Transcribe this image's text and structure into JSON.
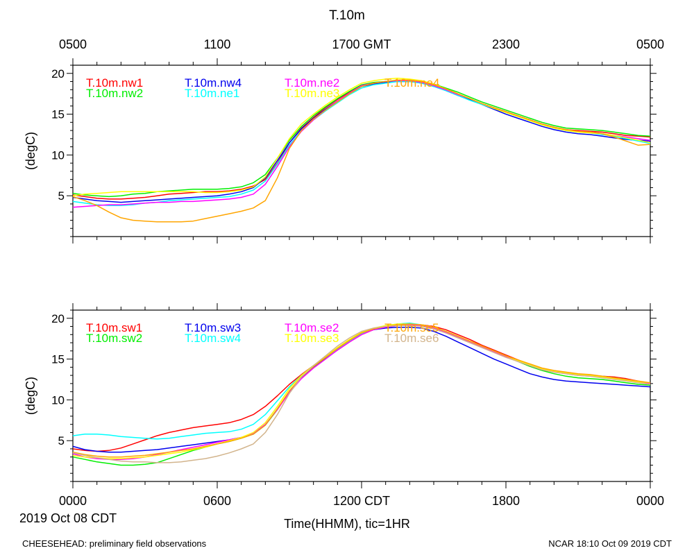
{
  "page": {
    "title": "T.10m",
    "date_label": "2019 Oct 08 CDT",
    "xaxis_title": "Time(HHMM), tic=1HR",
    "footer_left": "CHEESEHEAD: preliminary field observations",
    "footer_right": "NCAR 18:10 Oct 09 2019 CDT"
  },
  "chart_data": [
    {
      "type": "line",
      "panel": "top",
      "ylabel": "(degC)",
      "ylim": [
        0,
        21
      ],
      "yticks": [
        5,
        10,
        15,
        20
      ],
      "xlim": [
        0,
        24
      ],
      "x_unit": "hours from 0000 CDT",
      "top_tick_labels": [
        "0500",
        "1100",
        "1700 GMT",
        "2300",
        "0500"
      ],
      "top_tick_hours": [
        0,
        6,
        12,
        18,
        24
      ],
      "x": [
        0,
        0.5,
        1,
        1.5,
        2,
        2.5,
        3,
        3.5,
        4,
        4.5,
        5,
        5.5,
        6,
        6.5,
        7,
        7.5,
        8,
        8.5,
        9,
        9.5,
        10,
        10.5,
        11,
        11.5,
        12,
        12.5,
        13,
        13.5,
        14,
        14.5,
        15,
        15.5,
        16,
        16.5,
        17,
        17.5,
        18,
        18.5,
        19,
        19.5,
        20,
        20.5,
        21,
        21.5,
        22,
        22.5,
        23,
        23.5,
        24
      ],
      "series": [
        {
          "name": "T.10m.nw1",
          "color": "#ff0000",
          "values": [
            5.1,
            4.9,
            4.7,
            4.6,
            4.6,
            4.7,
            4.8,
            5.0,
            5.2,
            5.3,
            5.4,
            5.5,
            5.5,
            5.6,
            5.8,
            6.2,
            7.0,
            9.0,
            11.5,
            13.3,
            14.6,
            15.8,
            16.8,
            17.7,
            18.5,
            18.8,
            19.0,
            19.1,
            19.1,
            18.9,
            18.5,
            18.0,
            17.4,
            16.8,
            16.3,
            15.8,
            15.3,
            14.8,
            14.3,
            13.8,
            13.4,
            13.1,
            13.0,
            12.9,
            12.8,
            12.6,
            12.4,
            12.3,
            12.2
          ]
        },
        {
          "name": "T.10m.nw2",
          "color": "#00ee00",
          "values": [
            5.3,
            5.1,
            5.0,
            4.9,
            5.0,
            5.2,
            5.3,
            5.5,
            5.6,
            5.7,
            5.8,
            5.8,
            5.8,
            5.9,
            6.1,
            6.6,
            7.6,
            9.6,
            11.8,
            13.5,
            14.8,
            15.9,
            16.9,
            17.8,
            18.6,
            18.9,
            19.0,
            19.1,
            19.1,
            19.0,
            18.7,
            18.2,
            17.7,
            17.1,
            16.5,
            16.0,
            15.5,
            15.0,
            14.5,
            14.0,
            13.6,
            13.3,
            13.2,
            13.1,
            13.0,
            12.8,
            12.6,
            12.4,
            12.3
          ]
        },
        {
          "name": "T.10m.nw4",
          "color": "#0000ee",
          "values": [
            4.8,
            4.6,
            4.4,
            4.3,
            4.2,
            4.3,
            4.4,
            4.5,
            4.6,
            4.7,
            4.8,
            4.9,
            5.0,
            5.2,
            5.5,
            6.0,
            7.2,
            9.3,
            11.5,
            13.2,
            14.5,
            15.6,
            16.6,
            17.5,
            18.4,
            18.7,
            18.9,
            19.0,
            19.0,
            18.8,
            18.4,
            17.9,
            17.3,
            16.8,
            16.2,
            15.6,
            15.0,
            14.5,
            14.0,
            13.5,
            13.1,
            12.8,
            12.6,
            12.5,
            12.3,
            12.1,
            11.9,
            11.8,
            11.7
          ]
        },
        {
          "name": "T.10m.ne1",
          "color": "#00ffff",
          "values": [
            4.3,
            4.1,
            3.9,
            3.8,
            3.8,
            3.9,
            4.1,
            4.2,
            4.4,
            4.5,
            4.6,
            4.7,
            4.8,
            4.9,
            5.2,
            5.7,
            6.8,
            8.9,
            11.2,
            13.0,
            14.3,
            15.4,
            16.4,
            17.4,
            18.2,
            18.6,
            18.8,
            19.0,
            19.0,
            18.8,
            18.4,
            17.9,
            17.3,
            16.7,
            16.2,
            15.7,
            15.2,
            14.7,
            14.2,
            13.7,
            13.3,
            13.0,
            12.8,
            12.7,
            12.5,
            12.3,
            12.0,
            11.7,
            11.4
          ]
        },
        {
          "name": "T.10m.ne2",
          "color": "#ff00ff",
          "values": [
            3.6,
            3.7,
            3.8,
            3.9,
            3.9,
            4.0,
            4.1,
            4.2,
            4.2,
            4.3,
            4.3,
            4.4,
            4.5,
            4.6,
            4.8,
            5.2,
            6.4,
            8.6,
            11.0,
            12.9,
            14.3,
            15.5,
            16.6,
            17.6,
            18.5,
            18.8,
            19.0,
            19.1,
            19.1,
            18.9,
            18.5,
            18.0,
            17.4,
            16.9,
            16.3,
            15.8,
            15.3,
            14.8,
            14.3,
            13.8,
            13.4,
            13.1,
            12.9,
            12.8,
            12.6,
            12.4,
            12.2,
            12.0,
            11.8
          ]
        },
        {
          "name": "T.10m.ne3",
          "color": "#ffff00",
          "values": [
            5.0,
            5.2,
            5.3,
            5.4,
            5.5,
            5.5,
            5.5,
            5.5,
            5.5,
            5.5,
            5.5,
            5.4,
            5.4,
            5.5,
            5.7,
            6.1,
            7.3,
            9.6,
            12.0,
            13.8,
            15.0,
            16.1,
            17.1,
            18.0,
            18.8,
            19.1,
            19.3,
            19.4,
            19.3,
            19.1,
            18.7,
            18.1,
            17.5,
            16.9,
            16.3,
            15.7,
            15.2,
            14.7,
            14.2,
            13.7,
            13.3,
            13.0,
            12.8,
            12.7,
            12.6,
            12.4,
            12.1,
            11.8,
            11.5
          ]
        },
        {
          "name": "T.10m.ne4",
          "color": "#ffa500",
          "values": [
            4.9,
            4.4,
            3.8,
            3.0,
            2.3,
            2.0,
            1.9,
            1.8,
            1.8,
            1.8,
            1.9,
            2.2,
            2.5,
            2.8,
            3.1,
            3.5,
            4.4,
            7.2,
            10.8,
            13.0,
            14.4,
            15.5,
            16.5,
            17.5,
            18.4,
            18.8,
            19.0,
            19.2,
            19.2,
            19.0,
            18.6,
            18.1,
            17.5,
            16.9,
            16.3,
            15.8,
            15.3,
            14.8,
            14.3,
            13.8,
            13.4,
            13.1,
            12.9,
            12.8,
            12.6,
            12.2,
            11.7,
            11.2,
            11.3
          ]
        }
      ]
    },
    {
      "type": "line",
      "panel": "bottom",
      "ylabel": "(degC)",
      "ylim": [
        0,
        21
      ],
      "yticks": [
        5,
        10,
        15,
        20
      ],
      "xlim": [
        0,
        24
      ],
      "x_unit": "hours from 0000 CDT",
      "bottom_tick_labels": [
        "0000",
        "0600",
        "1200 CDT",
        "1800",
        "0000"
      ],
      "bottom_tick_hours": [
        0,
        6,
        12,
        18,
        24
      ],
      "x": [
        0,
        0.5,
        1,
        1.5,
        2,
        2.5,
        3,
        3.5,
        4,
        4.5,
        5,
        5.5,
        6,
        6.5,
        7,
        7.5,
        8,
        8.5,
        9,
        9.5,
        10,
        10.5,
        11,
        11.5,
        12,
        12.5,
        13,
        13.5,
        14,
        14.5,
        15,
        15.5,
        16,
        16.5,
        17,
        17.5,
        18,
        18.5,
        19,
        19.5,
        20,
        20.5,
        21,
        21.5,
        22,
        22.5,
        23,
        23.5,
        24
      ],
      "series": [
        {
          "name": "T.10m.sw1",
          "color": "#ff0000",
          "values": [
            4.0,
            3.8,
            3.7,
            3.8,
            4.1,
            4.6,
            5.1,
            5.6,
            6.0,
            6.3,
            6.6,
            6.8,
            7.0,
            7.2,
            7.6,
            8.2,
            9.2,
            10.5,
            11.9,
            13.1,
            14.2,
            15.1,
            16.1,
            17.1,
            18.0,
            18.6,
            19.0,
            19.2,
            19.3,
            19.2,
            19.0,
            18.6,
            18.0,
            17.4,
            16.7,
            16.1,
            15.5,
            14.9,
            14.3,
            13.8,
            13.5,
            13.3,
            13.1,
            13.0,
            12.9,
            12.8,
            12.6,
            12.3,
            12.0
          ]
        },
        {
          "name": "T.10m.sw2",
          "color": "#00ee00",
          "values": [
            3.0,
            2.7,
            2.4,
            2.2,
            2.0,
            2.0,
            2.1,
            2.3,
            2.8,
            3.3,
            3.8,
            4.2,
            4.6,
            4.9,
            5.3,
            5.8,
            6.9,
            8.8,
            11.0,
            12.7,
            14.0,
            15.1,
            16.2,
            17.2,
            18.1,
            18.6,
            18.9,
            19.1,
            19.2,
            19.1,
            18.8,
            18.3,
            17.7,
            17.1,
            16.5,
            15.9,
            15.3,
            14.7,
            14.1,
            13.6,
            13.2,
            12.9,
            12.7,
            12.6,
            12.5,
            12.3,
            12.1,
            11.9,
            11.8
          ]
        },
        {
          "name": "T.10m.sw3",
          "color": "#0000ee",
          "values": [
            4.3,
            3.9,
            3.7,
            3.6,
            3.6,
            3.7,
            3.8,
            3.9,
            4.1,
            4.3,
            4.5,
            4.7,
            4.9,
            5.1,
            5.4,
            5.8,
            6.9,
            8.9,
            11.0,
            12.8,
            14.1,
            15.2,
            16.2,
            17.2,
            18.1,
            18.6,
            18.8,
            18.9,
            18.9,
            18.8,
            18.4,
            17.8,
            17.1,
            16.4,
            15.7,
            15.0,
            14.4,
            13.8,
            13.2,
            12.8,
            12.5,
            12.3,
            12.2,
            12.1,
            12.0,
            11.9,
            11.8,
            11.7,
            11.6
          ]
        },
        {
          "name": "T.10m.sw4",
          "color": "#00ffff",
          "values": [
            5.6,
            5.8,
            5.8,
            5.7,
            5.5,
            5.4,
            5.3,
            5.2,
            5.3,
            5.5,
            5.7,
            5.9,
            6.0,
            6.1,
            6.4,
            7.0,
            8.2,
            9.9,
            11.6,
            13.0,
            14.2,
            15.2,
            16.2,
            17.2,
            18.1,
            18.7,
            19.1,
            19.3,
            19.4,
            19.2,
            18.9,
            18.4,
            17.8,
            17.2,
            16.6,
            16.0,
            15.4,
            14.8,
            14.3,
            13.8,
            13.5,
            13.3,
            13.1,
            13.0,
            12.9,
            12.7,
            12.5,
            12.2,
            12.0
          ]
        },
        {
          "name": "T.10m.se2",
          "color": "#ff00ff",
          "values": [
            3.4,
            3.0,
            2.8,
            2.7,
            2.7,
            2.8,
            3.0,
            3.3,
            3.6,
            3.9,
            4.2,
            4.5,
            4.8,
            5.1,
            5.4,
            5.9,
            7.0,
            8.8,
            10.9,
            12.6,
            13.9,
            15.0,
            16.1,
            17.1,
            18.0,
            18.6,
            18.9,
            19.1,
            19.2,
            19.1,
            18.8,
            18.3,
            17.7,
            17.1,
            16.5,
            15.9,
            15.3,
            14.7,
            14.2,
            13.7,
            13.4,
            13.2,
            13.0,
            12.9,
            12.8,
            12.6,
            12.4,
            12.2,
            12.0
          ]
        },
        {
          "name": "T.10m.se3",
          "color": "#ffff00",
          "values": [
            3.2,
            3.0,
            2.9,
            2.8,
            2.8,
            2.9,
            3.0,
            3.2,
            3.4,
            3.6,
            3.9,
            4.2,
            4.6,
            5.0,
            5.4,
            6.0,
            7.2,
            9.2,
            11.4,
            13.0,
            14.2,
            15.3,
            16.4,
            17.4,
            18.3,
            18.8,
            19.1,
            19.3,
            19.3,
            19.2,
            18.9,
            18.4,
            17.8,
            17.2,
            16.6,
            16.0,
            15.4,
            14.8,
            14.3,
            13.8,
            13.5,
            13.3,
            13.1,
            13.0,
            12.8,
            12.6,
            12.4,
            12.2,
            12.1
          ]
        },
        {
          "name": "T.10m.se5",
          "color": "#ffa500",
          "values": [
            3.6,
            3.3,
            3.1,
            3.0,
            3.0,
            3.1,
            3.2,
            3.4,
            3.6,
            3.8,
            4.0,
            4.3,
            4.6,
            4.9,
            5.3,
            5.8,
            6.9,
            8.9,
            11.1,
            12.8,
            14.1,
            15.2,
            16.3,
            17.3,
            18.2,
            18.7,
            19.0,
            19.2,
            19.3,
            19.2,
            18.9,
            18.4,
            17.8,
            17.2,
            16.6,
            16.0,
            15.4,
            14.9,
            14.4,
            13.9,
            13.6,
            13.4,
            13.2,
            13.1,
            12.9,
            12.7,
            12.5,
            12.3,
            12.1
          ]
        },
        {
          "name": "T.10m.se6",
          "color": "#d2b48c",
          "values": [
            3.5,
            3.2,
            2.9,
            2.7,
            2.5,
            2.4,
            2.4,
            2.3,
            2.3,
            2.4,
            2.6,
            2.8,
            3.1,
            3.5,
            4.0,
            4.6,
            6.0,
            8.2,
            10.8,
            12.8,
            14.2,
            15.4,
            16.6,
            17.6,
            18.4,
            18.8,
            19.0,
            19.1,
            19.1,
            19.0,
            18.7,
            18.2,
            17.6,
            17.0,
            16.4,
            15.8,
            15.2,
            14.7,
            14.2,
            13.7,
            13.4,
            13.2,
            13.0,
            12.9,
            12.7,
            12.5,
            12.3,
            12.1,
            11.9
          ]
        }
      ]
    }
  ]
}
